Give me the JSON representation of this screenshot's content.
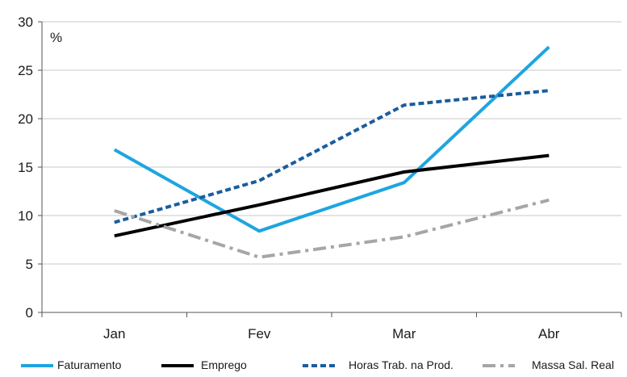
{
  "chart_data": {
    "type": "line",
    "unit_label": "%",
    "categories": [
      "Jan",
      "Fev",
      "Mar",
      "Abr"
    ],
    "ylim": [
      0,
      30
    ],
    "yticks": [
      0,
      5,
      10,
      15,
      20,
      25,
      30
    ],
    "grid": "horizontal",
    "legend_position": "bottom",
    "series": [
      {
        "name": "Faturamento",
        "values": [
          16.8,
          8.4,
          13.4,
          27.4
        ],
        "color": "#1ea5e0",
        "style": "solid"
      },
      {
        "name": "Emprego",
        "values": [
          7.9,
          11.1,
          14.5,
          16.2
        ],
        "color": "#000000",
        "style": "solid"
      },
      {
        "name": "Horas Trab. na Prod.",
        "values": [
          9.3,
          13.6,
          21.4,
          22.9
        ],
        "color": "#1a5d9e",
        "style": "dotted"
      },
      {
        "name": "Massa Sal. Real",
        "values": [
          10.5,
          5.7,
          7.8,
          11.6
        ],
        "color": "#a6a6a6",
        "style": "dashdot"
      }
    ]
  }
}
